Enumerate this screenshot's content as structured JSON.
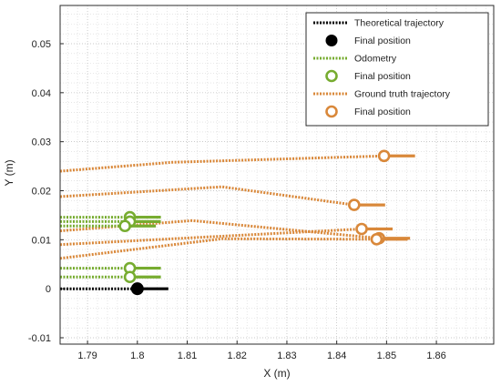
{
  "chart_data": {
    "type": "line",
    "title": "",
    "xlabel": "X (m)",
    "ylabel": "Y (m)",
    "xlim": [
      1.7845,
      1.8715
    ],
    "ylim": [
      -0.0113,
      0.0578
    ],
    "xticks": [
      1.79,
      1.8,
      1.81,
      1.82,
      1.83,
      1.84,
      1.85,
      1.86
    ],
    "xtick_labels": [
      "1.79",
      "1.8",
      "1.81",
      "1.82",
      "1.83",
      "1.84",
      "1.85",
      "1.86"
    ],
    "yticks": [
      -0.01,
      0,
      0.01,
      0.02,
      0.03,
      0.04,
      0.05
    ],
    "ytick_labels": [
      "-0.01",
      "0",
      "0.01",
      "0.02",
      "0.03",
      "0.04",
      "0.05"
    ],
    "grid": true,
    "minor_grid": true,
    "legend_position": "top-right",
    "legend": [
      {
        "label": "Theoretical trajectory",
        "kind": "line",
        "color": "#000000"
      },
      {
        "label": "Final position",
        "kind": "filled-marker",
        "color": "#000000"
      },
      {
        "label": "Odometry",
        "kind": "line",
        "color": "#77ac30"
      },
      {
        "label": "Final position",
        "kind": "open-marker",
        "color": "#77ac30"
      },
      {
        "label": "Ground truth trajectory",
        "kind": "line",
        "color": "#d9883a"
      },
      {
        "label": "Final position",
        "kind": "open-marker",
        "color": "#d9883a"
      }
    ],
    "colors": {
      "theoretical": "#000000",
      "odometry": "#77ac30",
      "ground_truth": "#d9883a"
    },
    "series": [
      {
        "group": "theoretical",
        "points": [
          [
            1.7845,
            0.0
          ],
          [
            1.8,
            0.0
          ]
        ],
        "final": [
          1.8,
          0.0
        ],
        "heading": 0
      },
      {
        "group": "odometry",
        "points": [
          [
            1.7845,
            0.0146
          ],
          [
            1.7985,
            0.0146
          ]
        ],
        "final": [
          1.7985,
          0.0146
        ],
        "heading": 0
      },
      {
        "group": "odometry",
        "points": [
          [
            1.7845,
            0.0137
          ],
          [
            1.7985,
            0.0137
          ]
        ],
        "final": [
          1.7985,
          0.0137
        ],
        "heading": 0
      },
      {
        "group": "odometry",
        "points": [
          [
            1.7845,
            0.0128
          ],
          [
            1.7975,
            0.0128
          ]
        ],
        "final": [
          1.7975,
          0.0128
        ],
        "heading": 0
      },
      {
        "group": "odometry",
        "points": [
          [
            1.7845,
            0.0042
          ],
          [
            1.7985,
            0.0042
          ]
        ],
        "final": [
          1.7985,
          0.0042
        ],
        "heading": 0
      },
      {
        "group": "odometry",
        "points": [
          [
            1.7845,
            0.0024
          ],
          [
            1.7985,
            0.0024
          ]
        ],
        "final": [
          1.7985,
          0.0024
        ],
        "heading": 0
      },
      {
        "group": "ground_truth",
        "points": [
          [
            1.7845,
            0.024
          ],
          [
            1.807,
            0.0258
          ],
          [
            1.8495,
            0.0271
          ]
        ],
        "final": [
          1.8495,
          0.0271
        ],
        "heading": 0
      },
      {
        "group": "ground_truth",
        "points": [
          [
            1.7845,
            0.0188
          ],
          [
            1.817,
            0.0208
          ],
          [
            1.8435,
            0.0171
          ]
        ],
        "final": [
          1.8435,
          0.0171
        ],
        "heading": 0
      },
      {
        "group": "ground_truth",
        "points": [
          [
            1.7845,
            0.0118
          ],
          [
            1.811,
            0.0139
          ],
          [
            1.8485,
            0.0103
          ]
        ],
        "final": [
          1.8485,
          0.0103
        ],
        "heading": 0
      },
      {
        "group": "ground_truth",
        "points": [
          [
            1.7845,
            0.009
          ],
          [
            1.845,
            0.0122
          ]
        ],
        "final": [
          1.845,
          0.0122
        ],
        "heading": 0
      },
      {
        "group": "ground_truth",
        "points": [
          [
            1.7845,
            0.0062
          ],
          [
            1.817,
            0.0102
          ],
          [
            1.848,
            0.0101
          ]
        ],
        "final": [
          1.848,
          0.0101
        ],
        "heading": 0
      }
    ]
  }
}
